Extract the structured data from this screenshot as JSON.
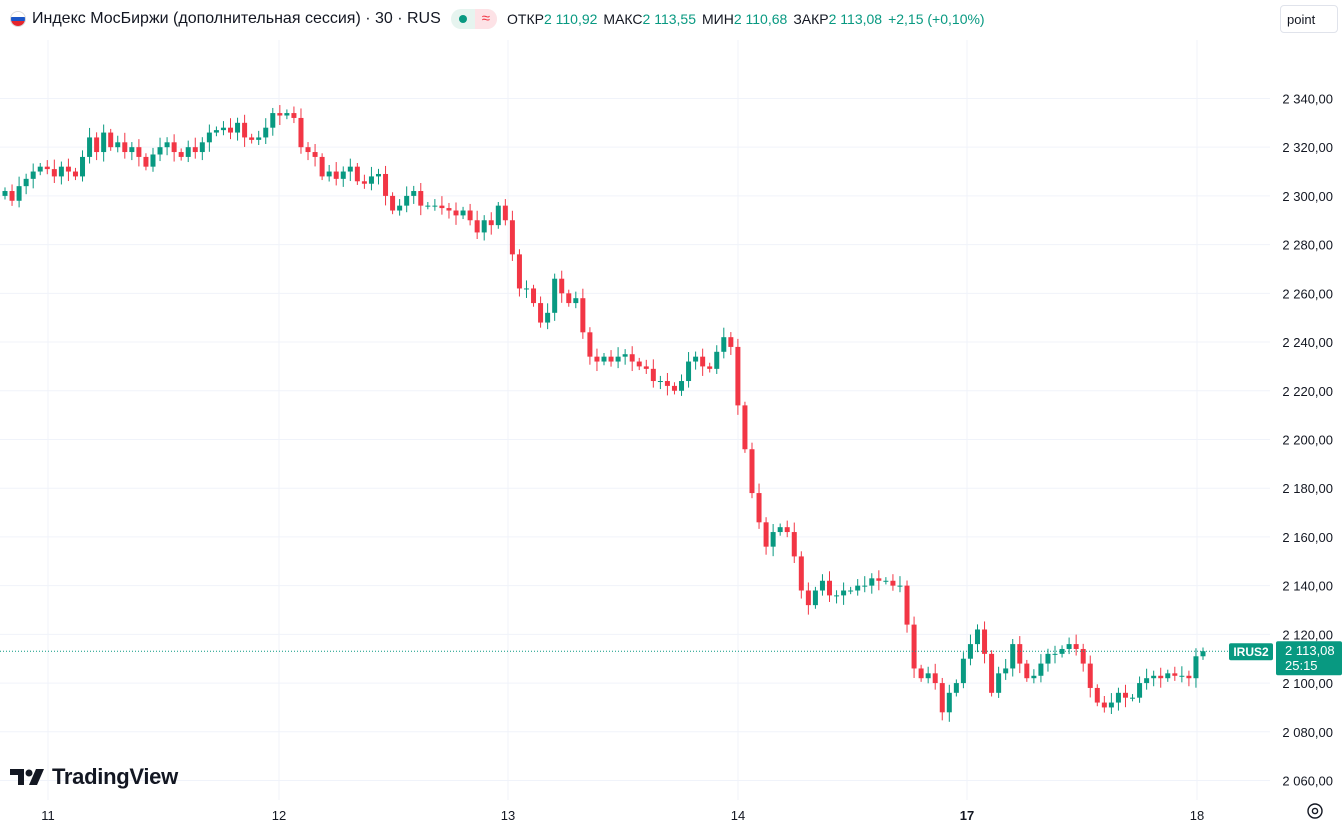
{
  "header": {
    "title": "Индекс МосБиржи (дополнительная сессия) · 30 · RUS",
    "status_icon": "market-status-dot",
    "status_wave": "≈",
    "ohlc": [
      {
        "key": "ОТКР",
        "value": "2 110,92"
      },
      {
        "key": "МАКС",
        "value": "2 113,55"
      },
      {
        "key": "МИН",
        "value": "2 110,68"
      },
      {
        "key": "ЗАКР",
        "value": "2 113,08"
      }
    ],
    "change": "+2,15 (+0,10%)",
    "unit_label": "point"
  },
  "price_tag": {
    "symbol": "IRUS2",
    "price": "2 113,08",
    "countdown": "25:15"
  },
  "logo_text": "TradingView",
  "colors": {
    "up": "#089981",
    "down": "#f23645",
    "grid": "#f0f3fa",
    "axis_text": "#131722"
  },
  "chart_data": {
    "type": "candlestick",
    "title": "Индекс МосБиржи (дополнительная сессия)",
    "interval": "30",
    "x_tick_labels": [
      "11",
      "12",
      "13",
      "14",
      "17",
      "18"
    ],
    "y_tick_labels": [
      "2 340,00",
      "2 320,00",
      "2 300,00",
      "2 280,00",
      "2 260,00",
      "2 240,00",
      "2 220,00",
      "2 200,00",
      "2 180,00",
      "2 160,00",
      "2 140,00",
      "2 120,00",
      "2 100,00",
      "2 080,00",
      "2 060,00"
    ],
    "y_tick_values": [
      2340,
      2320,
      2300,
      2280,
      2260,
      2240,
      2220,
      2200,
      2180,
      2160,
      2140,
      2120,
      2100,
      2080,
      2060
    ],
    "ylim": [
      2052,
      2364
    ],
    "grid": true,
    "last_price": 2113.08,
    "closes": [
      2302,
      2298,
      2304,
      2307,
      2310,
      2312,
      2311,
      2308,
      2312,
      2310,
      2308,
      2316,
      2324,
      2318,
      2326,
      2320,
      2322,
      2318,
      2320,
      2316,
      2312,
      2317,
      2320,
      2322,
      2318,
      2316,
      2320,
      2318,
      2322,
      2326,
      2327,
      2328,
      2326,
      2330,
      2324,
      2323,
      2324,
      2328,
      2334,
      2333,
      2334,
      2332,
      2320,
      2318,
      2316,
      2308,
      2310,
      2307,
      2310,
      2312,
      2306,
      2305,
      2308,
      2309,
      2300,
      2294,
      2296,
      2300,
      2302,
      2296,
      2296,
      2296,
      2295,
      2294,
      2292,
      2294,
      2290,
      2285,
      2290,
      2288,
      2296,
      2290,
      2276,
      2262,
      2262,
      2256,
      2248,
      2252,
      2266,
      2260,
      2256,
      2258,
      2244,
      2234,
      2232,
      2234,
      2232,
      2234,
      2235,
      2232,
      2230,
      2229,
      2224,
      2224,
      2222,
      2220,
      2224,
      2232,
      2234,
      2230,
      2229,
      2236,
      2242,
      2238,
      2214,
      2196,
      2178,
      2166,
      2156,
      2162,
      2164,
      2162,
      2152,
      2138,
      2132,
      2138,
      2142,
      2136,
      2136,
      2138,
      2138,
      2140,
      2140,
      2143,
      2142,
      2142,
      2140,
      2140,
      2124,
      2106,
      2102,
      2104,
      2100,
      2088,
      2096,
      2100,
      2110,
      2116,
      2122,
      2112,
      2096,
      2104,
      2106,
      2116,
      2108,
      2102,
      2103,
      2108,
      2112,
      2112,
      2114,
      2116,
      2114,
      2108,
      2098,
      2092,
      2090,
      2092,
      2096,
      2094,
      2094,
      2100,
      2102,
      2103,
      2102,
      2104,
      2103,
      2103,
      2102,
      2111,
      2113.08
    ]
  }
}
